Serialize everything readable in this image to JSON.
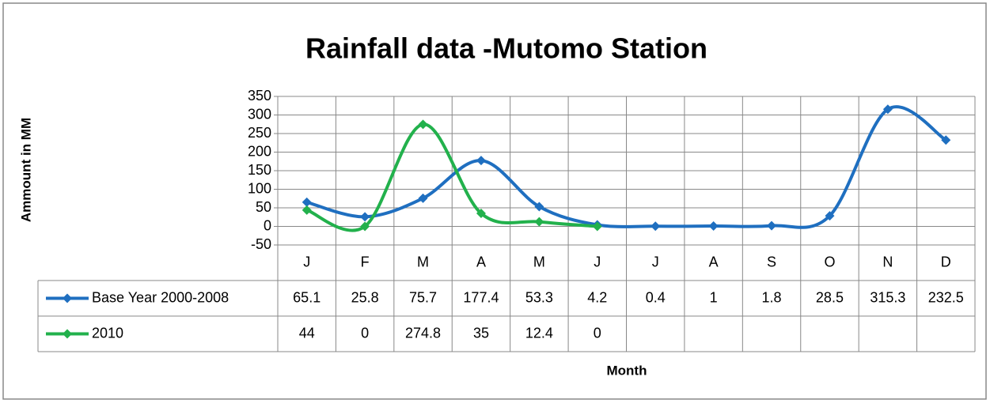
{
  "chart_data": {
    "type": "line",
    "title": "Rainfall data -Mutomo Station",
    "y_label": "Ammount in MM",
    "x_label": "Month",
    "categories": [
      "J",
      "F",
      "M",
      "A",
      "M",
      "J",
      "J",
      "A",
      "S",
      "O",
      "N",
      "D"
    ],
    "series": [
      {
        "name": "Base Year 2000-2008",
        "color": "#1f6fc0",
        "values": [
          65.1,
          25.8,
          75.7,
          177.4,
          53.3,
          4.2,
          0.4,
          1,
          1.8,
          28.5,
          315.3,
          232.5
        ]
      },
      {
        "name": "2010",
        "color": "#22b14c",
        "values": [
          44,
          0,
          274.8,
          35,
          12.4,
          0,
          null,
          null,
          null,
          null,
          null,
          null
        ]
      }
    ],
    "ylim": [
      -50,
      350
    ],
    "yticks": [
      -50,
      0,
      50,
      100,
      150,
      200,
      250,
      300,
      350
    ],
    "grid": true,
    "smooth": true
  }
}
